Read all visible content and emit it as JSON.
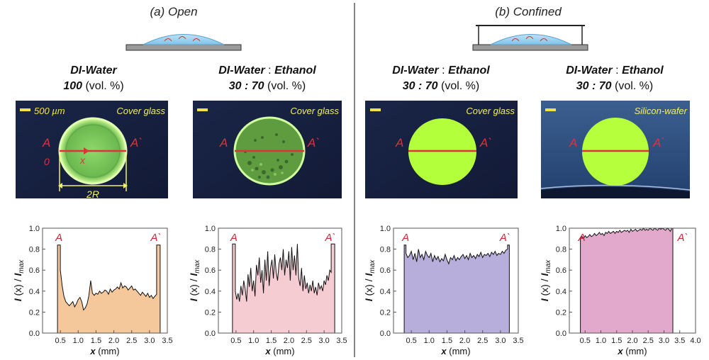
{
  "panels": {
    "a": {
      "prefix": "(",
      "letter": "a",
      "suffix": ") ",
      "word": "Open"
    },
    "b": {
      "prefix": "(",
      "letter": "b",
      "suffix": ") ",
      "word": "Confined"
    }
  },
  "columns": [
    {
      "line1a": "DI-Water",
      "line1b": "",
      "line1c": "",
      "line2a": "100",
      "line2b": " (vol. %)",
      "tag": "Cover glass",
      "scale_label": "500 µm"
    },
    {
      "line1a": "DI-Water",
      "line1b": " : ",
      "line1c": "Ethanol",
      "line2a": "30 : 70",
      "line2b": " (vol. %)",
      "tag": "Cover glass",
      "scale_label": ""
    },
    {
      "line1a": "DI-Water",
      "line1b": " : ",
      "line1c": "Ethanol",
      "line2a": "30 : 70",
      "line2b": " (vol. %)",
      "tag": "Cover glass",
      "scale_label": ""
    },
    {
      "line1a": "DI-Water",
      "line1b": " : ",
      "line1c": "Ethanol",
      "line2a": "30 : 70",
      "line2b": " (vol. %)",
      "tag": "Silicon-wafer",
      "scale_label": ""
    }
  ],
  "image_labels": {
    "A": "A",
    "A_prime": "A`",
    "zero": "0",
    "x": "x",
    "two_r": "2R"
  },
  "colors": {
    "image_bg": "#16213f",
    "droplet_green": "#b6ff3c",
    "scan_line": "#e0303c",
    "label_red": "#c8283a",
    "tag_yellow": "#f2ee6a"
  },
  "chart_data": [
    {
      "type": "area",
      "fill": "#f4c89a",
      "xlabel": "x (mm)",
      "ylabel": "I (x) / I_max",
      "xlim": [
        0,
        3.5
      ],
      "ylim": [
        0,
        1.0
      ],
      "xticks": [
        "0.5",
        "1.0",
        "1.5",
        "2.0",
        "2.5",
        "3.0",
        "3.5"
      ],
      "yticks": [
        "0.0",
        "0.2",
        "0.4",
        "0.6",
        "0.8",
        "1.0"
      ],
      "edge_labels": [
        "A",
        "A`"
      ],
      "x": [
        0.42,
        0.42,
        0.5,
        0.5,
        0.55,
        0.6,
        0.65,
        0.7,
        0.75,
        0.8,
        0.85,
        0.9,
        0.95,
        1.0,
        1.05,
        1.1,
        1.15,
        1.2,
        1.25,
        1.3,
        1.35,
        1.4,
        1.45,
        1.5,
        1.55,
        1.6,
        1.65,
        1.7,
        1.75,
        1.8,
        1.85,
        1.9,
        1.95,
        2.0,
        2.05,
        2.1,
        2.15,
        2.2,
        2.25,
        2.3,
        2.35,
        2.4,
        2.45,
        2.5,
        2.55,
        2.6,
        2.65,
        2.7,
        2.75,
        2.8,
        2.85,
        2.9,
        2.95,
        3.0,
        3.05,
        3.1,
        3.15,
        3.2,
        3.2,
        3.3,
        3.3
      ],
      "y": [
        0,
        0.84,
        0.84,
        0.6,
        0.45,
        0.35,
        0.3,
        0.28,
        0.26,
        0.28,
        0.3,
        0.25,
        0.28,
        0.32,
        0.34,
        0.3,
        0.22,
        0.24,
        0.28,
        0.36,
        0.5,
        0.38,
        0.36,
        0.38,
        0.37,
        0.4,
        0.38,
        0.39,
        0.41,
        0.4,
        0.37,
        0.42,
        0.39,
        0.41,
        0.42,
        0.44,
        0.42,
        0.48,
        0.43,
        0.45,
        0.44,
        0.41,
        0.43,
        0.45,
        0.41,
        0.42,
        0.4,
        0.38,
        0.36,
        0.39,
        0.37,
        0.35,
        0.38,
        0.34,
        0.36,
        0.33,
        0.35,
        0.37,
        0.84,
        0.84,
        0
      ]
    },
    {
      "type": "area",
      "fill": "#f6ccd3",
      "xlabel": "x (mm)",
      "ylabel": "I (x) / I_max",
      "xlim": [
        0,
        3.5
      ],
      "ylim": [
        0,
        1.0
      ],
      "xticks": [
        "0.5",
        "1.0",
        "1.5",
        "2.0",
        "2.5",
        "3.0",
        "3.5"
      ],
      "yticks": [
        "0.0",
        "0.2",
        "0.4",
        "0.6",
        "0.8",
        "1.0"
      ],
      "edge_labels": [
        "A",
        "A`"
      ],
      "x": [
        0.4,
        0.4,
        0.48,
        0.48,
        0.52,
        0.56,
        0.6,
        0.64,
        0.68,
        0.72,
        0.76,
        0.8,
        0.84,
        0.88,
        0.92,
        0.96,
        1.0,
        1.04,
        1.08,
        1.12,
        1.16,
        1.2,
        1.24,
        1.28,
        1.32,
        1.36,
        1.4,
        1.44,
        1.48,
        1.52,
        1.56,
        1.6,
        1.64,
        1.68,
        1.72,
        1.76,
        1.8,
        1.84,
        1.88,
        1.92,
        1.96,
        2.0,
        2.04,
        2.08,
        2.12,
        2.16,
        2.2,
        2.24,
        2.28,
        2.32,
        2.36,
        2.4,
        2.44,
        2.48,
        2.52,
        2.56,
        2.6,
        2.64,
        2.68,
        2.72,
        2.76,
        2.8,
        2.84,
        2.88,
        2.92,
        2.96,
        3.0,
        3.04,
        3.08,
        3.12,
        3.16,
        3.2,
        3.2,
        3.3,
        3.3
      ],
      "y": [
        0,
        0.85,
        0.85,
        0.4,
        0.32,
        0.38,
        0.3,
        0.45,
        0.36,
        0.5,
        0.42,
        0.3,
        0.56,
        0.44,
        0.62,
        0.4,
        0.5,
        0.35,
        0.65,
        0.55,
        0.72,
        0.48,
        0.6,
        0.38,
        0.7,
        0.5,
        0.78,
        0.45,
        0.62,
        0.7,
        0.52,
        0.75,
        0.58,
        0.5,
        0.66,
        0.72,
        0.6,
        0.8,
        0.55,
        0.7,
        0.62,
        0.78,
        0.5,
        0.82,
        0.6,
        0.74,
        0.55,
        0.85,
        0.52,
        0.45,
        0.62,
        0.4,
        0.55,
        0.42,
        0.48,
        0.38,
        0.46,
        0.4,
        0.5,
        0.38,
        0.44,
        0.36,
        0.48,
        0.42,
        0.45,
        0.4,
        0.5,
        0.46,
        0.55,
        0.5,
        0.6,
        0.58,
        0.85,
        0.85,
        0
      ]
    },
    {
      "type": "area",
      "fill": "#b7aedb",
      "xlabel": "x (mm)",
      "ylabel": "I (x) / I_max",
      "xlim": [
        0,
        3.5
      ],
      "ylim": [
        0,
        1.0
      ],
      "xticks": [
        "0.5",
        "1.0",
        "1.5",
        "2.0",
        "2.5",
        "3.0",
        "3.5"
      ],
      "yticks": [
        "0.0",
        "0.2",
        "0.4",
        "0.6",
        "0.8",
        "1.0"
      ],
      "edge_labels": [
        "A",
        "A`"
      ],
      "x": [
        0.3,
        0.3,
        0.35,
        0.35,
        0.4,
        0.45,
        0.5,
        0.55,
        0.6,
        0.65,
        0.7,
        0.75,
        0.8,
        0.85,
        0.9,
        0.95,
        1.0,
        1.05,
        1.1,
        1.15,
        1.2,
        1.25,
        1.3,
        1.35,
        1.4,
        1.45,
        1.5,
        1.55,
        1.6,
        1.65,
        1.7,
        1.75,
        1.8,
        1.85,
        1.9,
        1.95,
        2.0,
        2.05,
        2.1,
        2.15,
        2.2,
        2.25,
        2.3,
        2.35,
        2.4,
        2.45,
        2.5,
        2.55,
        2.6,
        2.65,
        2.7,
        2.75,
        2.8,
        2.85,
        2.9,
        2.95,
        3.0,
        3.05,
        3.1,
        3.15,
        3.2,
        3.2,
        3.25,
        3.25
      ],
      "y": [
        0,
        0.84,
        0.84,
        0.76,
        0.72,
        0.74,
        0.78,
        0.7,
        0.76,
        0.68,
        0.8,
        0.72,
        0.75,
        0.7,
        0.78,
        0.74,
        0.72,
        0.76,
        0.68,
        0.74,
        0.7,
        0.73,
        0.68,
        0.71,
        0.69,
        0.75,
        0.7,
        0.66,
        0.72,
        0.7,
        0.74,
        0.69,
        0.72,
        0.7,
        0.73,
        0.75,
        0.71,
        0.74,
        0.7,
        0.76,
        0.72,
        0.74,
        0.71,
        0.75,
        0.73,
        0.77,
        0.72,
        0.75,
        0.74,
        0.76,
        0.73,
        0.77,
        0.75,
        0.78,
        0.74,
        0.76,
        0.75,
        0.78,
        0.76,
        0.79,
        0.8,
        0.84,
        0.84,
        0
      ]
    },
    {
      "type": "area",
      "fill": "#e2a9cc",
      "xlabel": "x (mm)",
      "ylabel": "I (x) / I_max",
      "xlim": [
        0,
        4.0
      ],
      "ylim": [
        0,
        1.0
      ],
      "xticks": [
        "0.5",
        "1.0",
        "1.5",
        "2.0",
        "2.5",
        "3.0",
        "3.5",
        "4.0"
      ],
      "yticks": [
        "0.0",
        "0.2",
        "0.4",
        "0.6",
        "0.8",
        "1.0"
      ],
      "edge_labels": [
        "A",
        "A`"
      ],
      "x": [
        0.35,
        0.35,
        0.4,
        0.45,
        0.5,
        0.55,
        0.6,
        0.65,
        0.7,
        0.75,
        0.8,
        0.85,
        0.9,
        0.95,
        1.0,
        1.05,
        1.1,
        1.15,
        1.2,
        1.25,
        1.3,
        1.35,
        1.4,
        1.45,
        1.5,
        1.55,
        1.6,
        1.65,
        1.7,
        1.75,
        1.8,
        1.85,
        1.9,
        1.95,
        2.0,
        2.05,
        2.1,
        2.15,
        2.2,
        2.25,
        2.3,
        2.35,
        2.4,
        2.45,
        2.5,
        2.55,
        2.6,
        2.65,
        2.7,
        2.75,
        2.8,
        2.85,
        2.9,
        2.95,
        3.0,
        3.05,
        3.1,
        3.15,
        3.2,
        3.25,
        3.28,
        3.28
      ],
      "y": [
        0,
        0.9,
        0.92,
        0.9,
        0.93,
        0.91,
        0.92,
        0.94,
        0.92,
        0.93,
        0.95,
        0.93,
        0.94,
        0.96,
        0.94,
        0.95,
        0.93,
        0.96,
        0.95,
        0.97,
        0.95,
        0.96,
        0.97,
        0.95,
        0.97,
        0.96,
        0.98,
        0.96,
        0.97,
        0.98,
        0.97,
        0.98,
        0.96,
        0.99,
        0.97,
        0.98,
        0.99,
        0.97,
        0.98,
        0.99,
        0.98,
        1.0,
        0.98,
        0.99,
        0.98,
        1.0,
        0.99,
        0.98,
        1.0,
        0.99,
        0.98,
        1.0,
        0.99,
        1.0,
        0.99,
        0.98,
        1.0,
        0.99,
        0.97,
        1.0,
        1.0,
        0
      ]
    }
  ]
}
